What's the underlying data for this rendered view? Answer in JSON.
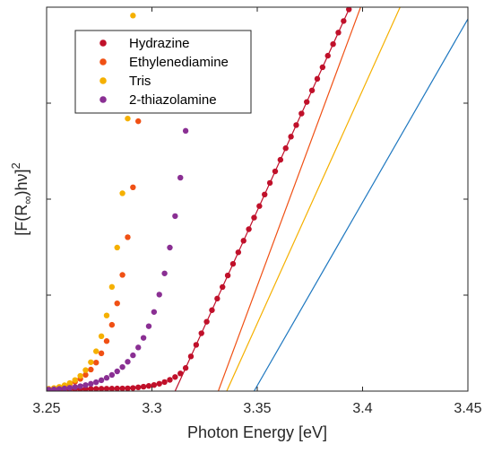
{
  "chart_data": {
    "type": "scatter",
    "xlabel": "Photon Energy [eV]",
    "ylabel_main": "[F(R",
    "ylabel_sub": "∞",
    "ylabel_rest": ")hν]",
    "ylabel_sup": "2",
    "xlim": [
      3.25,
      3.45
    ],
    "ylim": [
      0,
      1
    ],
    "x_ticks": [
      3.25,
      3.3,
      3.35,
      3.4,
      3.45
    ],
    "x_tick_labels": [
      "3.25",
      "3.3",
      "3.35",
      "3.4",
      "3.45"
    ],
    "y_ticks": [
      0,
      0.25,
      0.5,
      0.75,
      1
    ],
    "y_tick_labels_shown": false,
    "legend_position": "top-left",
    "series": [
      {
        "name": "Hydrazine",
        "color": "#c0102a",
        "x0": 3.29,
        "fit": {
          "x_intercept": 3.311,
          "slope": 12.05
        },
        "tail": {
          "a": 0.0044,
          "k": 0.079
        }
      },
      {
        "name": "Ethylenediamine",
        "color": "#f05014",
        "x0": 3.31,
        "fit": {
          "x_intercept": 3.3315,
          "slope": 14.8
        },
        "tail": {
          "a": 0.0053,
          "k": 0.0089
        }
      },
      {
        "name": "Tris",
        "color": "#f5b000",
        "x0": 3.31,
        "fit": {
          "x_intercept": 3.3355,
          "slope": 12.15
        },
        "tail": {
          "a": 0.0051,
          "k": 0.0078
        }
      },
      {
        "name": "2-thiazolamine",
        "color": "#8a2f93",
        "x0": 3.33,
        "fit": {
          "x_intercept": 3.3485,
          "slope": 9.55
        },
        "tail": {
          "a": 0.0036,
          "k": 0.0126
        }
      }
    ],
    "fit_line_colors": [
      "#c0102a",
      "#f05014",
      "#f5b000",
      "#1f78c0"
    ]
  }
}
